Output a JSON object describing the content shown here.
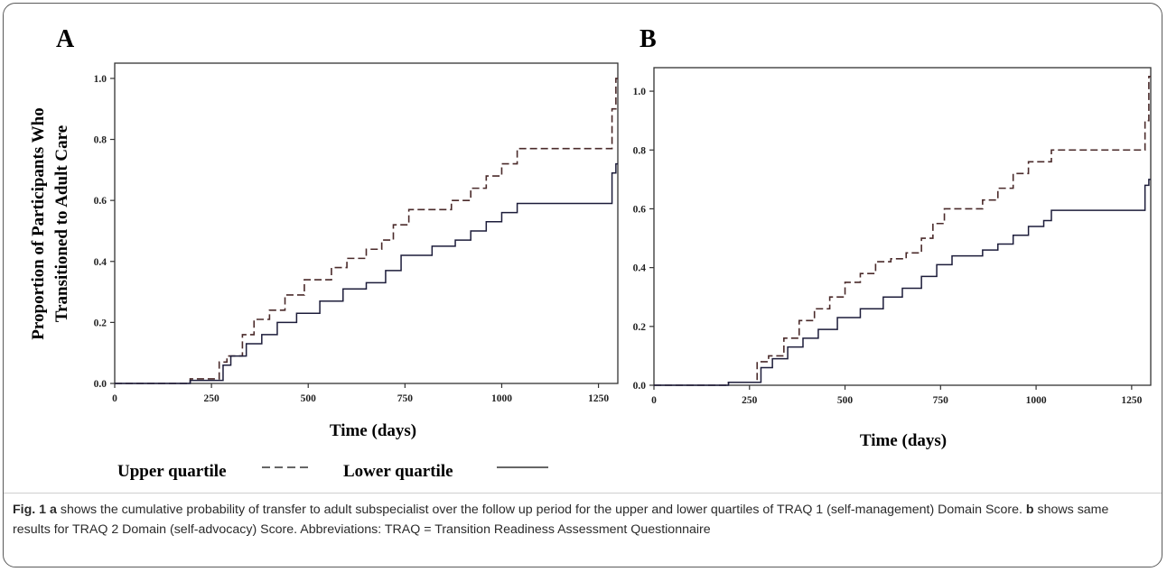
{
  "figure": {
    "panel_a_label": "A",
    "panel_b_label": "B",
    "legend": {
      "upper_label": "Upper quartile",
      "lower_label": "Lower quartile"
    },
    "caption": {
      "fig_label": "Fig. 1",
      "a_letter": "a",
      "text1": " shows the cumulative probability of transfer to adult subspecialist over the follow up period for the upper and lower quartiles of TRAQ 1 (self-management) Domain Score. ",
      "b_letter": "b",
      "text2": " shows same results for TRAQ 2 Domain (self-advocacy) Score. Abbreviations: TRAQ = Transition Readiness Assessment Questionnaire"
    }
  },
  "chart_data": [
    {
      "panel": "A",
      "type": "line",
      "step": true,
      "xlabel": "Time (days)",
      "ylabel_lines": [
        "Proportion of Participants Who",
        "Transitioned to Adult Care"
      ],
      "xlim": [
        0,
        1300
      ],
      "ylim": [
        0,
        1.05
      ],
      "xticks": [
        "0",
        "250",
        "500",
        "750",
        "1000",
        "1250"
      ],
      "yticks": [
        "0.0",
        "0.2",
        "0.4",
        "0.6",
        "0.8",
        "1.0"
      ],
      "series": [
        {
          "name": "Upper quartile",
          "style": "dashed",
          "x": [
            0,
            195,
            270,
            290,
            330,
            360,
            400,
            440,
            490,
            560,
            600,
            650,
            690,
            720,
            760,
            870,
            920,
            960,
            1000,
            1040,
            1285,
            1295,
            1300
          ],
          "y": [
            0,
            0.015,
            0.07,
            0.09,
            0.16,
            0.21,
            0.24,
            0.29,
            0.34,
            0.38,
            0.41,
            0.44,
            0.47,
            0.52,
            0.57,
            0.6,
            0.64,
            0.68,
            0.72,
            0.77,
            0.9,
            1.0,
            1.0
          ]
        },
        {
          "name": "Lower quartile",
          "style": "solid",
          "x": [
            0,
            195,
            280,
            300,
            340,
            380,
            420,
            470,
            530,
            590,
            650,
            700,
            740,
            820,
            880,
            920,
            960,
            1000,
            1040,
            1285,
            1295,
            1300
          ],
          "y": [
            0,
            0.01,
            0.06,
            0.09,
            0.13,
            0.16,
            0.2,
            0.23,
            0.27,
            0.31,
            0.33,
            0.37,
            0.42,
            0.45,
            0.47,
            0.5,
            0.53,
            0.56,
            0.59,
            0.69,
            0.72,
            0.72
          ]
        }
      ]
    },
    {
      "panel": "B",
      "type": "line",
      "step": true,
      "xlabel": "Time (days)",
      "xlim": [
        0,
        1300
      ],
      "ylim": [
        0,
        1.08
      ],
      "xticks": [
        "0",
        "250",
        "500",
        "750",
        "1000",
        "1250"
      ],
      "yticks": [
        "0.0",
        "0.2",
        "0.4",
        "0.6",
        "0.8",
        "1.0"
      ],
      "series": [
        {
          "name": "Upper quartile",
          "style": "dashed",
          "x": [
            0,
            195,
            270,
            300,
            340,
            380,
            420,
            460,
            500,
            540,
            580,
            620,
            660,
            700,
            730,
            760,
            860,
            900,
            940,
            980,
            1040,
            1285,
            1295,
            1300
          ],
          "y": [
            0,
            0.01,
            0.08,
            0.1,
            0.16,
            0.22,
            0.26,
            0.3,
            0.35,
            0.38,
            0.42,
            0.43,
            0.45,
            0.5,
            0.55,
            0.6,
            0.63,
            0.67,
            0.72,
            0.76,
            0.8,
            0.9,
            1.05,
            1.05
          ]
        },
        {
          "name": "Lower quartile",
          "style": "solid",
          "x": [
            0,
            195,
            280,
            310,
            350,
            390,
            430,
            480,
            540,
            600,
            650,
            700,
            740,
            780,
            860,
            900,
            940,
            980,
            1020,
            1040,
            1285,
            1295,
            1300
          ],
          "y": [
            0,
            0.01,
            0.06,
            0.09,
            0.13,
            0.16,
            0.19,
            0.23,
            0.26,
            0.3,
            0.33,
            0.37,
            0.41,
            0.44,
            0.46,
            0.48,
            0.51,
            0.54,
            0.56,
            0.595,
            0.68,
            0.7,
            0.7
          ]
        }
      ]
    }
  ]
}
